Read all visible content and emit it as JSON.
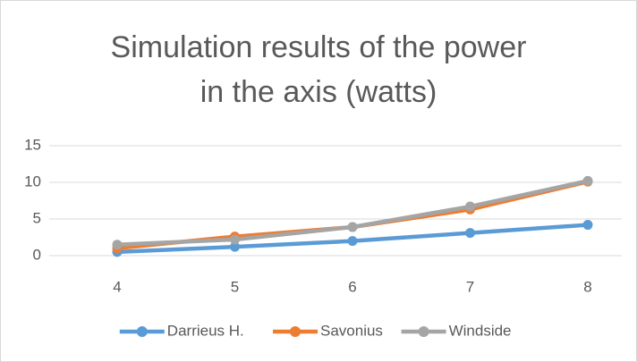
{
  "chart_data": {
    "type": "line",
    "title": "Simulation results of the power in the axis (watts)",
    "categories": [
      "4",
      "5",
      "6",
      "7",
      "8"
    ],
    "series": [
      {
        "name": "Darrieus H.",
        "color": "#5b9bd5",
        "values": [
          0.5,
          1.2,
          2.0,
          3.1,
          4.2
        ]
      },
      {
        "name": "Savonius",
        "color": "#ed7d31",
        "values": [
          1.0,
          2.6,
          3.9,
          6.3,
          10.1
        ]
      },
      {
        "name": "Windside",
        "color": "#a5a5a5",
        "values": [
          1.5,
          2.2,
          3.9,
          6.7,
          10.2
        ]
      }
    ],
    "ylim": [
      0,
      15
    ],
    "yticks": [
      0,
      5,
      10,
      15
    ],
    "grid": true,
    "legend": "bottom"
  }
}
